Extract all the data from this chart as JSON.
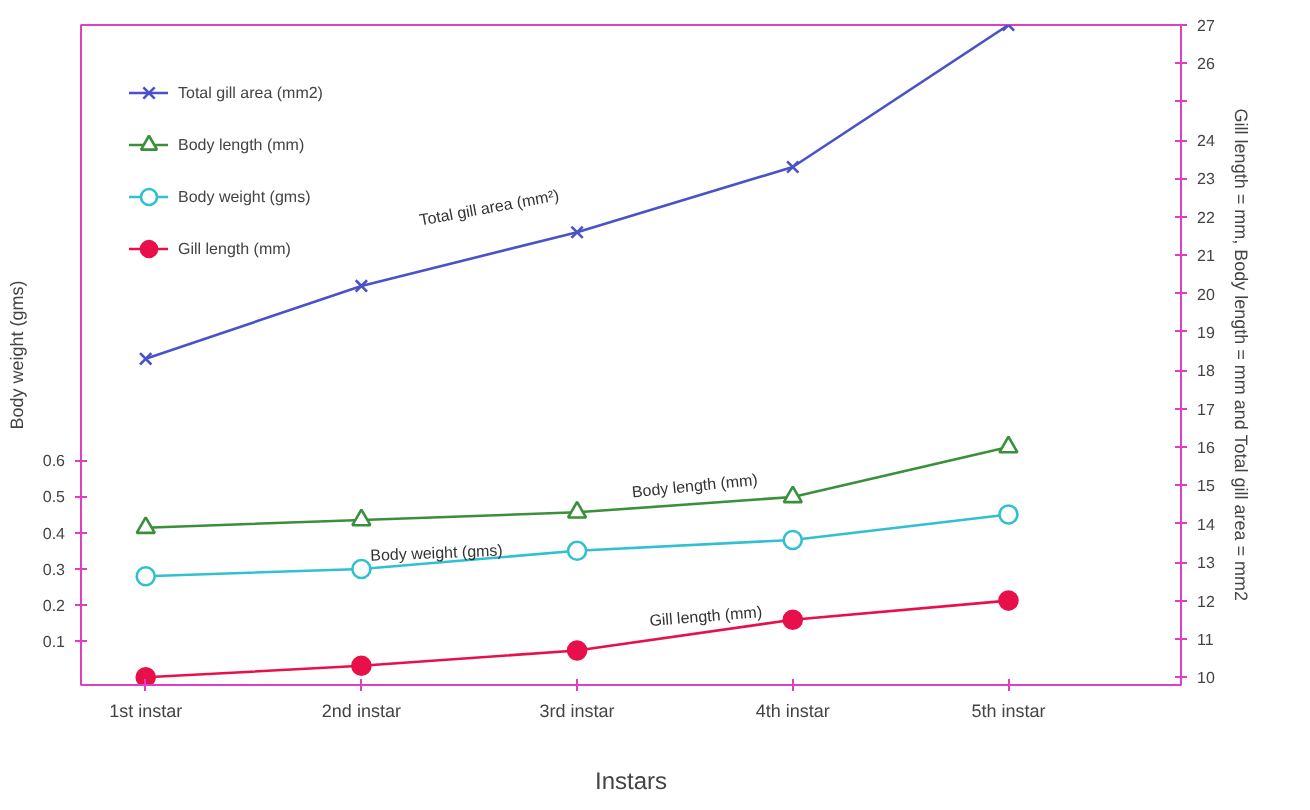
{
  "chart_data": {
    "type": "line",
    "categories": [
      "1st instar",
      "2nd instar",
      "3rd instar",
      "4th instar",
      "5th instar"
    ],
    "xlabel": "Instars",
    "ylabel": "Body weight (gms)",
    "y2label": "Gill length = mm, Body length = mm and Total gill area = mm2",
    "ylim": [
      -0.02,
      1.8
    ],
    "yticks": [
      0.1,
      0.2,
      0.3,
      0.4,
      0.5,
      0.6
    ],
    "y2lim": [
      9.8,
      27
    ],
    "y2ticks": [
      10,
      11,
      12,
      13,
      14,
      15,
      16,
      17,
      18,
      19,
      20,
      21,
      22,
      23,
      24,
      {
        "value": 25,
        "label": null
      },
      26,
      27
    ],
    "legend": "top left",
    "grid": false,
    "series": [
      {
        "name": "Total gill area (mm2)",
        "color": "#4a52c8",
        "values": [
          18.3,
          20.2,
          21.6,
          23.3,
          27.0
        ],
        "axis": "y2",
        "marker": "cross"
      },
      {
        "name": "Body length (mm)",
        "color": "#3a8f3a",
        "values": [
          13.9,
          14.1,
          14.3,
          14.7,
          16.0
        ],
        "axis": "y2",
        "marker": "triangle"
      },
      {
        "name": "Body weight (gms)",
        "color": "#30c0d0",
        "values": [
          0.28,
          0.3,
          0.35,
          0.38,
          0.45
        ],
        "marker": "circle"
      },
      {
        "name": "Gill length (mm)",
        "color": "#e8104a",
        "values": [
          10.0,
          10.3,
          10.7,
          11.5,
          12.0
        ],
        "axis": "y2",
        "marker": "circle"
      }
    ],
    "annotations": [
      "Total gill area (mm²)",
      "Body length (mm)",
      "Body weight (gms)",
      "Gill length (mm)"
    ]
  }
}
